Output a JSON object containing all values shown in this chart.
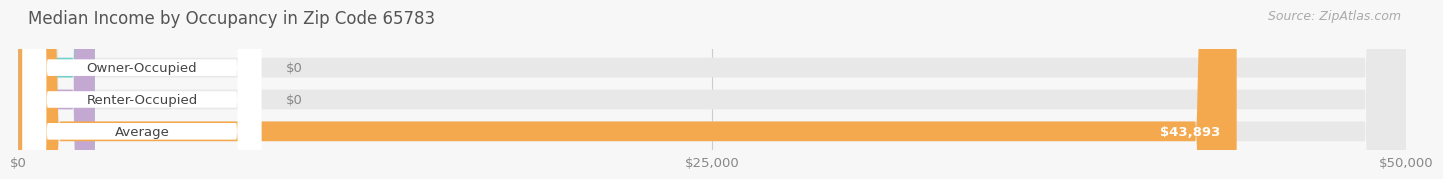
{
  "title": "Median Income by Occupancy in Zip Code 65783",
  "source": "Source: ZipAtlas.com",
  "categories": [
    "Owner-Occupied",
    "Renter-Occupied",
    "Average"
  ],
  "values": [
    0,
    0,
    43893
  ],
  "bar_colors": [
    "#72cfc9",
    "#c3a8d1",
    "#f5a94e"
  ],
  "bar_labels": [
    "$0",
    "$0",
    "$43,893"
  ],
  "xlim": [
    0,
    50000
  ],
  "xticks": [
    0,
    25000,
    50000
  ],
  "xtick_labels": [
    "$0",
    "$25,000",
    "$50,000"
  ],
  "background_color": "#f7f7f7",
  "bar_bg_color": "#e8e8e8",
  "title_fontsize": 12,
  "source_fontsize": 9,
  "label_fontsize": 9.5,
  "tick_fontsize": 9.5,
  "bar_height": 0.62
}
